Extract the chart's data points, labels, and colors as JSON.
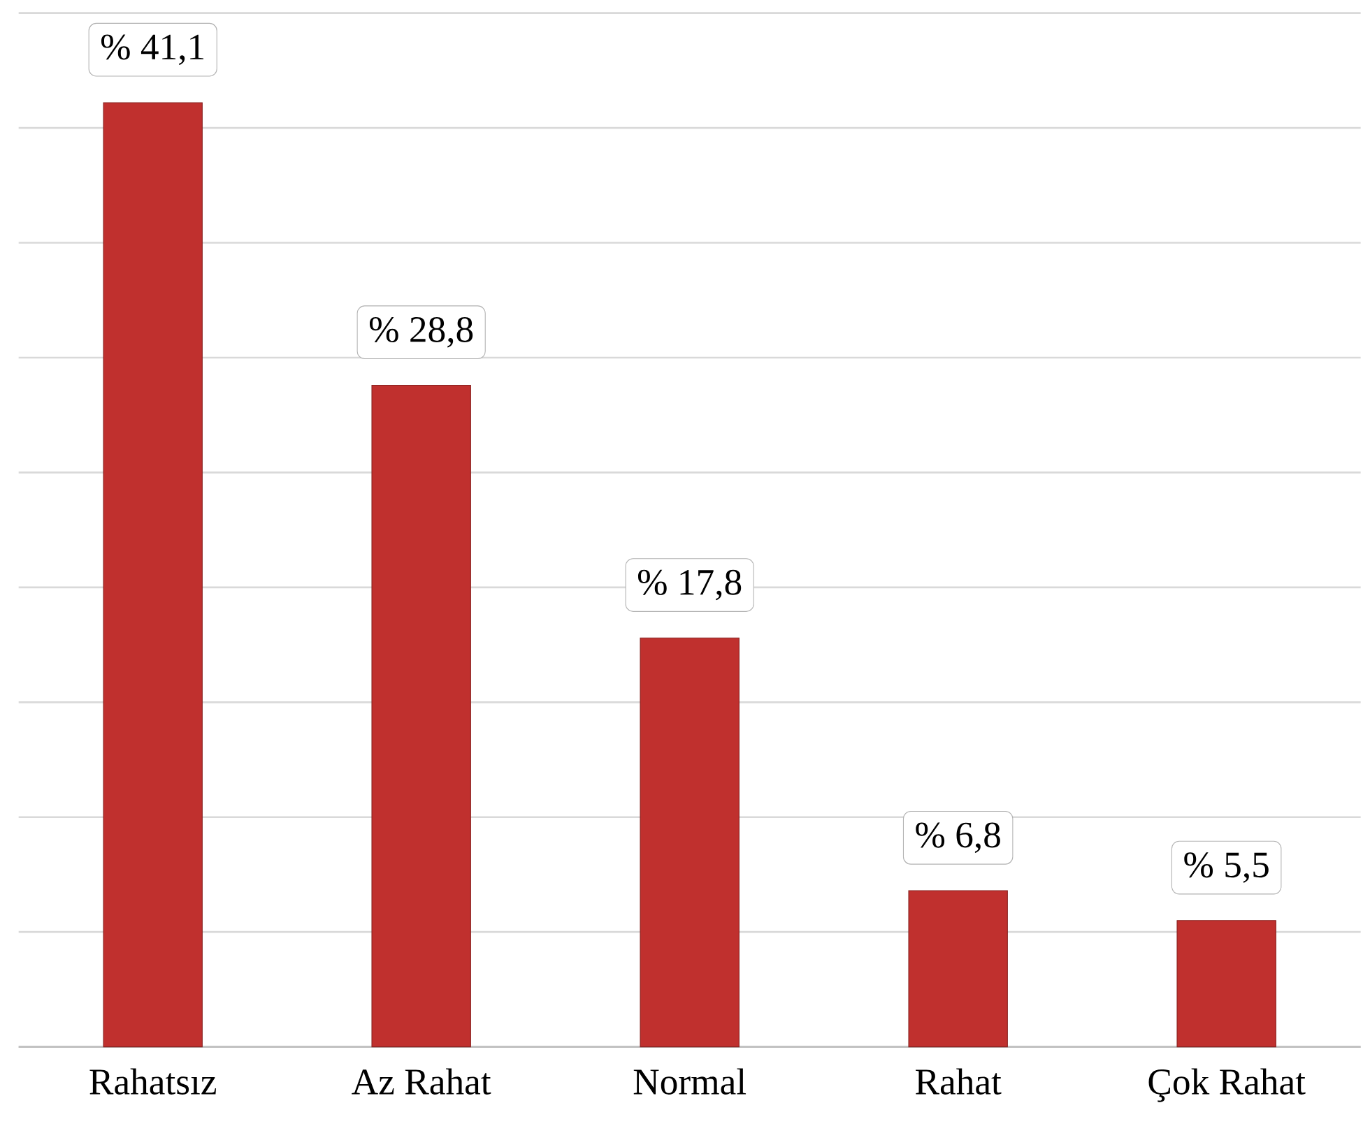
{
  "chart_data": {
    "type": "bar",
    "categories": [
      "Rahatsız",
      "Az Rahat",
      "Normal",
      "Rahat",
      "Çok Rahat"
    ],
    "values": [
      41.1,
      28.8,
      17.8,
      6.8,
      5.5
    ],
    "value_labels": [
      "% 41,1",
      "% 28,8",
      "% 17,8",
      "% 6,8",
      "% 5,5"
    ],
    "color": "#c0302e",
    "ylim": [
      0,
      45
    ],
    "yticks": [
      {
        "value": 0,
        "label": null
      },
      {
        "value": 5,
        "label": null
      },
      {
        "value": 10,
        "label": null
      },
      {
        "value": 15,
        "label": null
      },
      {
        "value": 20,
        "label": null
      },
      {
        "value": 25,
        "label": null
      },
      {
        "value": 30,
        "label": null
      },
      {
        "value": 35,
        "label": null
      },
      {
        "value": 40,
        "label": null
      },
      {
        "value": 45,
        "label": null
      }
    ],
    "grid": "y",
    "tick_labels": "x"
  }
}
